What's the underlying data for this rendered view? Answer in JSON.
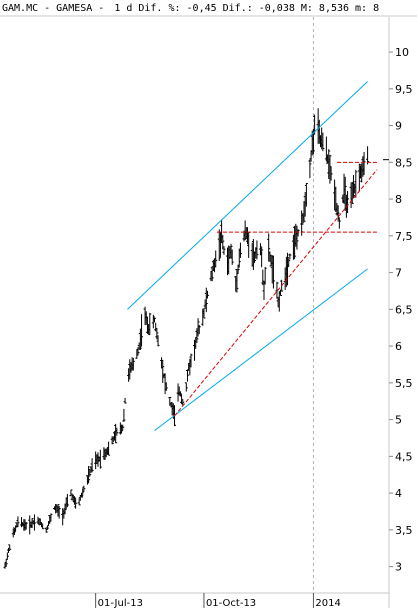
{
  "header": {
    "ticker": "GAM.MC",
    "name": "GAMESA",
    "period": "1 d",
    "dif_pct_label": "Dif. %:",
    "dif_pct": "-0,45",
    "dif_label": "Dif.:",
    "dif": "-0,038",
    "max_label": "M:",
    "max": "8,536",
    "min_label": "m:",
    "min": "8"
  },
  "chart_data": {
    "type": "ohlc",
    "title": "GAM.MC - GAMESA - 1 d Dif. %: -0,45 Dif.: -0,038 M: 8,536 m: 8",
    "xlabel": "",
    "ylabel": "",
    "ylim": [
      2.75,
      10.3
    ],
    "x_range": [
      "2013-04-15",
      "2014-02-25"
    ],
    "y_ticks": [
      {
        "value": 10,
        "label": "10"
      },
      {
        "value": 9.5,
        "label": "9,5"
      },
      {
        "value": 9,
        "label": "9"
      },
      {
        "value": 8.5,
        "label": "8,5"
      },
      {
        "value": 8,
        "label": "8"
      },
      {
        "value": 7.5,
        "label": "7,5"
      },
      {
        "value": 7,
        "label": "7"
      },
      {
        "value": 6.5,
        "label": "6,5"
      },
      {
        "value": 6,
        "label": "6"
      },
      {
        "value": 5.5,
        "label": "5,5"
      },
      {
        "value": 5,
        "label": "5"
      },
      {
        "value": 4.5,
        "label": "4,5"
      },
      {
        "value": 4,
        "label": "4"
      },
      {
        "value": 3.5,
        "label": "3,5"
      },
      {
        "value": 3,
        "label": "3"
      }
    ],
    "x_ticks": [
      {
        "date": "2013-07-01",
        "label": "01-Jul-13"
      },
      {
        "date": "2013-10-01",
        "label": "01-Oct-13"
      },
      {
        "date": "2014-01-02",
        "label": "2014"
      }
    ],
    "price_path": [
      [
        "2013-04-15",
        3.0
      ],
      [
        "2013-04-20",
        3.35
      ],
      [
        "2013-04-26",
        3.6
      ],
      [
        "2013-05-05",
        3.55
      ],
      [
        "2013-05-12",
        3.65
      ],
      [
        "2013-05-20",
        3.5
      ],
      [
        "2013-05-27",
        3.8
      ],
      [
        "2013-06-03",
        3.7
      ],
      [
        "2013-06-10",
        4.0
      ],
      [
        "2013-06-15",
        3.8
      ],
      [
        "2013-06-22",
        4.1
      ],
      [
        "2013-06-29",
        4.4
      ],
      [
        "2013-07-06",
        4.5
      ],
      [
        "2013-07-12",
        4.6
      ],
      [
        "2013-07-18",
        4.8
      ],
      [
        "2013-07-24",
        4.9
      ],
      [
        "2013-07-28",
        5.6
      ],
      [
        "2013-08-02",
        5.75
      ],
      [
        "2013-08-07",
        6.0
      ],
      [
        "2013-08-11",
        6.45
      ],
      [
        "2013-08-15",
        6.25
      ],
      [
        "2013-08-20",
        6.35
      ],
      [
        "2013-08-25",
        5.9
      ],
      [
        "2013-08-29",
        5.5
      ],
      [
        "2013-09-02",
        5.25
      ],
      [
        "2013-09-06",
        5.05
      ],
      [
        "2013-09-10",
        5.4
      ],
      [
        "2013-09-14",
        5.2
      ],
      [
        "2013-09-18",
        5.7
      ],
      [
        "2013-09-22",
        5.9
      ],
      [
        "2013-09-26",
        6.2
      ],
      [
        "2013-09-30",
        6.4
      ],
      [
        "2013-10-04",
        6.7
      ],
      [
        "2013-10-08",
        7.0
      ],
      [
        "2013-10-12",
        7.25
      ],
      [
        "2013-10-16",
        7.5
      ],
      [
        "2013-10-20",
        7.1
      ],
      [
        "2013-10-24",
        7.3
      ],
      [
        "2013-10-28",
        6.85
      ],
      [
        "2013-11-01",
        7.3
      ],
      [
        "2013-11-05",
        7.55
      ],
      [
        "2013-11-09",
        7.4
      ],
      [
        "2013-11-13",
        7.2
      ],
      [
        "2013-11-17",
        7.5
      ],
      [
        "2013-11-21",
        6.8
      ],
      [
        "2013-11-25",
        7.3
      ],
      [
        "2013-11-29",
        7.0
      ],
      [
        "2013-12-03",
        6.6
      ],
      [
        "2013-12-07",
        6.85
      ],
      [
        "2013-12-11",
        7.1
      ],
      [
        "2013-12-15",
        7.35
      ],
      [
        "2013-12-19",
        7.5
      ],
      [
        "2013-12-23",
        7.6
      ],
      [
        "2013-12-27",
        8.1
      ],
      [
        "2013-12-31",
        8.6
      ],
      [
        "2014-01-04",
        9.1
      ],
      [
        "2014-01-08",
        8.8
      ],
      [
        "2014-01-12",
        8.7
      ],
      [
        "2014-01-16",
        8.4
      ],
      [
        "2014-01-20",
        8.1
      ],
      [
        "2014-01-24",
        7.7
      ],
      [
        "2014-01-28",
        8.1
      ],
      [
        "2014-02-01",
        7.85
      ],
      [
        "2014-02-05",
        8.1
      ],
      [
        "2014-02-09",
        8.3
      ],
      [
        "2014-02-13",
        8.4
      ],
      [
        "2014-02-17",
        8.55
      ]
    ],
    "last_close": 8.536,
    "trendlines": [
      {
        "kind": "channel-upper",
        "color": "#00aaee",
        "from": [
          "2013-07-28",
          6.5
        ],
        "to": [
          "2014-02-17",
          9.6
        ]
      },
      {
        "kind": "channel-lower",
        "color": "#00aaee",
        "from": [
          "2013-08-20",
          4.85
        ],
        "to": [
          "2014-02-17",
          7.05
        ]
      },
      {
        "kind": "support",
        "color": "#dd0000",
        "dash": true,
        "from": [
          "2013-09-06",
          5.05
        ],
        "to": [
          "2014-02-25",
          8.4
        ]
      },
      {
        "kind": "horizontal",
        "color": "#dd0000",
        "dash": true,
        "from": [
          "2013-10-12",
          7.55
        ],
        "to": [
          "2014-02-25",
          7.55
        ]
      },
      {
        "kind": "horizontal",
        "color": "#dd0000",
        "dash": true,
        "from": [
          "2014-01-22",
          8.5
        ],
        "to": [
          "2014-02-25",
          8.5
        ]
      }
    ],
    "grid": false,
    "legend": "none"
  }
}
